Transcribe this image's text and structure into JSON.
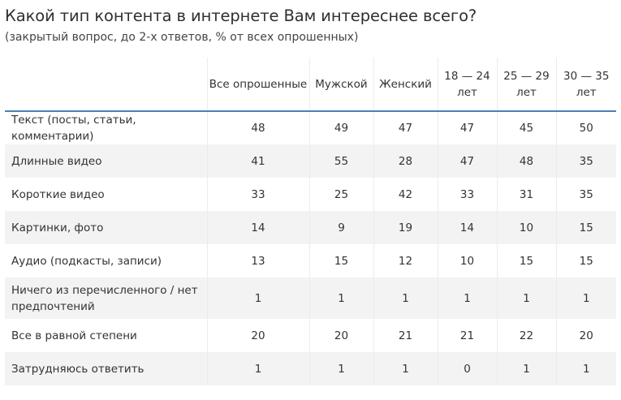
{
  "title": "Какой тип контента в интернете Вам интереснее всего?",
  "subtitle": "(закрытый вопрос, до 2-х ответов, % от всех опрошенных)",
  "columns": [
    "Все опрошенные",
    "Мужской",
    "Женский",
    "18 — 24 лет",
    "25 — 29 лет",
    "30 — 35 лет"
  ],
  "rows": [
    {
      "label": "Текст (посты, статьи, комментарии)",
      "values": [
        "48",
        "49",
        "47",
        "47",
        "45",
        "50"
      ]
    },
    {
      "label": "Длинные видео",
      "values": [
        "41",
        "55",
        "28",
        "47",
        "48",
        "35"
      ]
    },
    {
      "label": "Короткие видео",
      "values": [
        "33",
        "25",
        "42",
        "33",
        "31",
        "35"
      ]
    },
    {
      "label": "Картинки, фото",
      "values": [
        "14",
        "9",
        "19",
        "14",
        "10",
        "15"
      ]
    },
    {
      "label": "Аудио (подкасты, записи)",
      "values": [
        "13",
        "15",
        "12",
        "10",
        "15",
        "15"
      ]
    },
    {
      "label": "Ничего из перечисленного / нет предпочтений",
      "values": [
        "1",
        "1",
        "1",
        "1",
        "1",
        "1"
      ]
    },
    {
      "label": "Все в равной степени",
      "values": [
        "20",
        "20",
        "21",
        "21",
        "22",
        "20"
      ]
    },
    {
      "label": "Затрудняюсь ответить",
      "values": [
        "1",
        "1",
        "1",
        "0",
        "1",
        "1"
      ]
    }
  ],
  "colors": {
    "header_rule": "#4f7fb8",
    "stripe": "#f3f3f3"
  }
}
